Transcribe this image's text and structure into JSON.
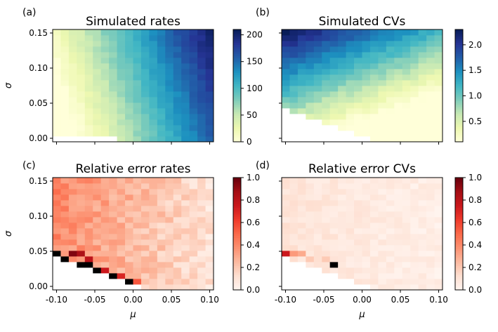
{
  "chart_data": [
    {
      "id": "a",
      "type": "heatmap",
      "panel_label": "(a)",
      "title": "Simulated rates",
      "xlabel": "",
      "ylabel": "σ",
      "xlim": [
        -0.105,
        0.105
      ],
      "ylim": [
        -0.005,
        0.155
      ],
      "grid": [
        20,
        20
      ],
      "colormap": "YlGnBu",
      "colorbar_range": [
        0,
        210
      ],
      "colorbar_ticks": [
        0,
        50,
        100,
        150,
        200
      ],
      "xticks": [
        "-0.10",
        "-0.05",
        "0.00",
        "0.05",
        "0.10"
      ],
      "xtick_values": [
        -0.1,
        -0.05,
        0,
        0.05,
        0.1
      ],
      "show_xticklabels": false,
      "yticks": [
        "0.00",
        "0.05",
        "0.10",
        "0.15"
      ],
      "ytick_values": [
        0,
        0.05,
        0.1,
        0.15
      ],
      "show_yticklabels": true,
      "model": "rates",
      "blank_rows_by_col": [
        1,
        1,
        1,
        1,
        1,
        1,
        1,
        1,
        0,
        0,
        0,
        0,
        0,
        0,
        0,
        0,
        0,
        0,
        0,
        0
      ]
    },
    {
      "id": "b",
      "type": "heatmap",
      "panel_label": "(b)",
      "title": "Simulated CVs",
      "xlabel": "",
      "ylabel": "",
      "xlim": [
        -0.105,
        0.105
      ],
      "ylim": [
        -0.005,
        0.155
      ],
      "grid": [
        20,
        20
      ],
      "colormap": "YlGnBu",
      "colorbar_range": [
        0.1,
        2.3
      ],
      "colorbar_ticks": [
        0.5,
        1.0,
        1.5,
        2.0
      ],
      "colorbar_ticklabels": [
        "0.5",
        "1.0",
        "1.5",
        "2.0"
      ],
      "xticks": [
        "-0.10",
        "-0.05",
        "0.00",
        "0.05",
        "0.10"
      ],
      "xtick_values": [
        -0.1,
        -0.05,
        0,
        0.05,
        0.1
      ],
      "show_xticklabels": false,
      "yticks": [
        "0.00",
        "0.05",
        "0.10",
        "0.15"
      ],
      "ytick_values": [
        0,
        0.05,
        0.1,
        0.15
      ],
      "show_yticklabels": false,
      "model": "cvs",
      "blank_rows_by_col": [
        6,
        5,
        5,
        4,
        4,
        3,
        3,
        2,
        2,
        1,
        1,
        0,
        0,
        0,
        0,
        0,
        0,
        0,
        0,
        0
      ]
    },
    {
      "id": "c",
      "type": "heatmap",
      "panel_label": "(c)",
      "title": "Relative error rates",
      "xlabel": "μ",
      "ylabel": "σ",
      "xlim": [
        -0.105,
        0.105
      ],
      "ylim": [
        -0.005,
        0.155
      ],
      "grid": [
        20,
        20
      ],
      "colormap": "Reds",
      "colorbar_range": [
        0,
        1
      ],
      "colorbar_ticks": [
        0.0,
        0.2,
        0.4,
        0.6,
        0.8,
        1.0
      ],
      "colorbar_ticklabels": [
        "0.0",
        "0.2",
        "0.4",
        "0.6",
        "0.8",
        "1.0"
      ],
      "xticks": [
        "-0.10",
        "-0.05",
        "0.00",
        "0.05",
        "0.10"
      ],
      "xtick_values": [
        -0.1,
        -0.05,
        0,
        0.05,
        0.1
      ],
      "show_xticklabels": true,
      "yticks": [
        "0.00",
        "0.05",
        "0.10",
        "0.15"
      ],
      "ytick_values": [
        0,
        0.05,
        0.1,
        0.15
      ],
      "show_yticklabels": true,
      "model": "err_rates",
      "blank_rows_by_col": [
        6,
        5,
        5,
        4,
        4,
        3,
        3,
        2,
        2,
        1,
        1,
        0,
        0,
        0,
        0,
        0,
        0,
        0,
        0,
        0
      ],
      "outliers": [
        [
          0,
          6,
          1.6
        ],
        [
          1,
          5,
          1.6
        ],
        [
          3,
          4,
          1.6
        ],
        [
          4,
          4,
          1.6
        ],
        [
          5,
          3,
          1.6
        ],
        [
          7,
          2,
          1.6
        ],
        [
          9,
          1,
          1.6
        ],
        [
          0,
          5,
          0.9
        ],
        [
          2,
          6,
          0.95
        ],
        [
          3,
          6,
          0.85
        ],
        [
          4,
          5,
          0.8
        ],
        [
          6,
          3,
          0.75
        ],
        [
          8,
          2,
          0.7
        ],
        [
          10,
          1,
          0.55
        ]
      ]
    },
    {
      "id": "d",
      "type": "heatmap",
      "panel_label": "(d)",
      "title": "Relative error CVs",
      "xlabel": "μ",
      "ylabel": "",
      "xlim": [
        -0.105,
        0.105
      ],
      "ylim": [
        -0.005,
        0.155
      ],
      "grid": [
        20,
        20
      ],
      "colormap": "Reds",
      "colorbar_range": [
        0,
        1
      ],
      "colorbar_ticks": [
        0.0,
        0.2,
        0.4,
        0.6,
        0.8,
        1.0
      ],
      "colorbar_ticklabels": [
        "0.0",
        "0.2",
        "0.4",
        "0.6",
        "0.8",
        "1.0"
      ],
      "xticks": [
        "-0.10",
        "-0.05",
        "0.00",
        "0.05",
        "0.10"
      ],
      "xtick_values": [
        -0.1,
        -0.05,
        0,
        0.05,
        0.1
      ],
      "show_xticklabels": true,
      "yticks": [
        "0.00",
        "0.05",
        "0.10",
        "0.15"
      ],
      "ytick_values": [
        0,
        0.05,
        0.1,
        0.15
      ],
      "show_yticklabels": false,
      "model": "err_cvs",
      "blank_rows_by_col": [
        6,
        5,
        5,
        4,
        4,
        3,
        3,
        2,
        2,
        1,
        1,
        0,
        0,
        0,
        0,
        0,
        0,
        0,
        0,
        0
      ],
      "outliers": [
        [
          0,
          6,
          0.75
        ],
        [
          1,
          6,
          0.35
        ],
        [
          2,
          6,
          0.3
        ],
        [
          3,
          5,
          0.2
        ],
        [
          6,
          4,
          1.6
        ],
        [
          5,
          5,
          0.2
        ]
      ]
    }
  ]
}
